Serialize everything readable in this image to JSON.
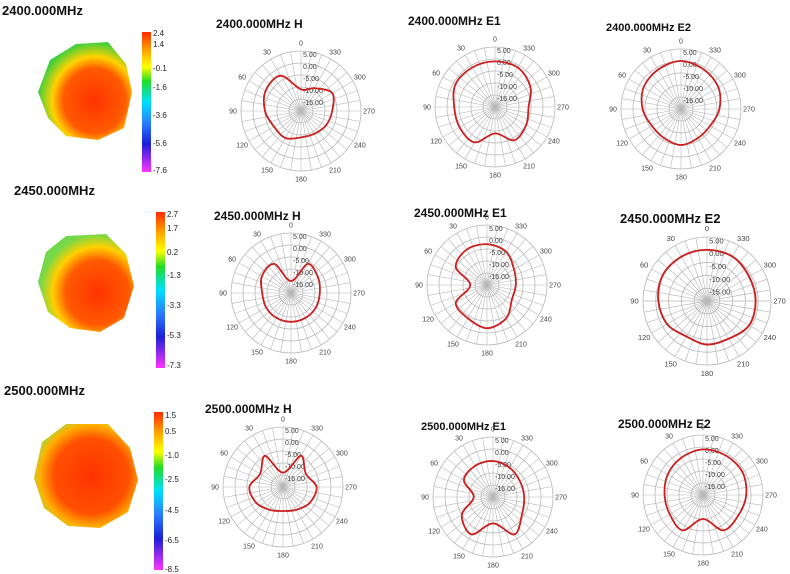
{
  "rows": [
    {
      "freq_title": "2400.000MHz",
      "colorbar_ticks": [
        "2.4",
        "1.4",
        "-0.1",
        "-1.6",
        "-3.6",
        "-5.6",
        "-7.6"
      ],
      "plots": [
        {
          "title": "2400.000MHz  H"
        },
        {
          "title": "2400.000MHz  E1"
        },
        {
          "title": "2400.000MHz  E2"
        }
      ]
    },
    {
      "freq_title": "2450.000MHz",
      "colorbar_ticks": [
        "2.7",
        "1.7",
        "0.2",
        "-1.3",
        "-3.3",
        "-5.3",
        "-7.3"
      ],
      "plots": [
        {
          "title": "2450.000MHz  H"
        },
        {
          "title": "2450.000MHz  E1"
        },
        {
          "title": "2450.000MHz  E2"
        }
      ]
    },
    {
      "freq_title": "2500.000MHz",
      "colorbar_ticks": [
        "1.5",
        "0.5",
        "-1.0",
        "-2.5",
        "-4.5",
        "-6.5",
        "-8.5"
      ],
      "plots": [
        {
          "title": "2500.000MHz  H"
        },
        {
          "title": "2500.000MHz  E1"
        },
        {
          "title": "2500.000MHz  E2"
        }
      ]
    }
  ],
  "polar_axis": {
    "angle_labels": [
      "0",
      "30",
      "60",
      "90",
      "120",
      "150",
      "180",
      "210",
      "240",
      "270",
      "300",
      "330"
    ],
    "ring_labels": [
      "5.00",
      "0.00",
      "-5.00",
      "-10.00",
      "-15.00"
    ]
  },
  "colors": {
    "trace": "#cc2020",
    "grid": "#b8b8b8"
  },
  "chart_data": [
    {
      "type": "polar",
      "title": "2400.000MHz  H",
      "theta_deg": [
        0,
        30,
        60,
        90,
        120,
        150,
        180,
        210,
        240,
        270,
        300,
        330
      ],
      "r": [
        -11,
        -3,
        -3,
        -5,
        -7,
        -7,
        -9,
        -9,
        -8,
        -7,
        -5,
        -9
      ]
    },
    {
      "type": "polar",
      "title": "2400.000MHz  E1",
      "theta_deg": [
        0,
        30,
        60,
        90,
        120,
        150,
        180,
        210,
        240,
        270,
        300,
        330
      ],
      "r": [
        -1,
        -1,
        -1,
        -3,
        -3,
        -3,
        -9,
        -4,
        -5,
        -6,
        -3,
        -1
      ]
    },
    {
      "type": "polar",
      "title": "2400.000MHz  E2",
      "theta_deg": [
        0,
        30,
        60,
        90,
        120,
        150,
        180,
        210,
        240,
        270,
        300,
        330
      ],
      "r": [
        0,
        -1,
        -2,
        -4,
        -6,
        -6,
        -5,
        -6,
        -6,
        -4,
        -2,
        -1
      ]
    },
    {
      "type": "polar",
      "title": "2450.000MHz  H",
      "theta_deg": [
        0,
        30,
        60,
        90,
        120,
        150,
        180,
        210,
        240,
        270,
        300,
        330
      ],
      "r": [
        -15,
        -6,
        -6,
        -8,
        -8,
        -8,
        -8,
        -8,
        -8,
        -8,
        -7,
        -6
      ]
    },
    {
      "type": "polar",
      "title": "2450.000MHz  E1",
      "theta_deg": [
        0,
        30,
        60,
        90,
        120,
        150,
        180,
        210,
        240,
        270,
        300,
        330
      ],
      "r": [
        -3,
        -3,
        -5,
        -13,
        -5,
        -4,
        -2,
        -4,
        -8,
        -8,
        -7,
        -4
      ]
    },
    {
      "type": "polar",
      "title": "2450.000MHz  E2",
      "theta_deg": [
        0,
        30,
        60,
        90,
        120,
        150,
        180,
        210,
        240,
        270,
        300,
        330
      ],
      "r": [
        0,
        0,
        0,
        -1,
        -2,
        -4,
        -3,
        -3,
        -1,
        -1,
        -1,
        0
      ]
    },
    {
      "type": "polar",
      "title": "2500.000MHz  H",
      "theta_deg": [
        0,
        30,
        60,
        90,
        120,
        150,
        180,
        210,
        240,
        270,
        300,
        330
      ],
      "r": [
        -14,
        -5,
        -9,
        -6,
        -7,
        -9,
        -10,
        -9,
        -7,
        -6,
        -9,
        -5
      ]
    },
    {
      "type": "polar",
      "title": "2500.000MHz  E1",
      "theta_deg": [
        0,
        30,
        60,
        90,
        120,
        150,
        180,
        210,
        240,
        270,
        300,
        330
      ],
      "r": [
        -5,
        -5,
        -6,
        -12,
        -5,
        -2,
        -9,
        -2,
        -6,
        -7,
        -7,
        -6
      ]
    },
    {
      "type": "polar",
      "title": "2500.000MHz  E2",
      "theta_deg": [
        0,
        30,
        60,
        90,
        120,
        150,
        180,
        210,
        240,
        270,
        300,
        330
      ],
      "r": [
        -1,
        -2,
        -3,
        -4,
        -4,
        -3,
        -10,
        -3,
        -3,
        -2,
        -1,
        -1
      ]
    }
  ]
}
